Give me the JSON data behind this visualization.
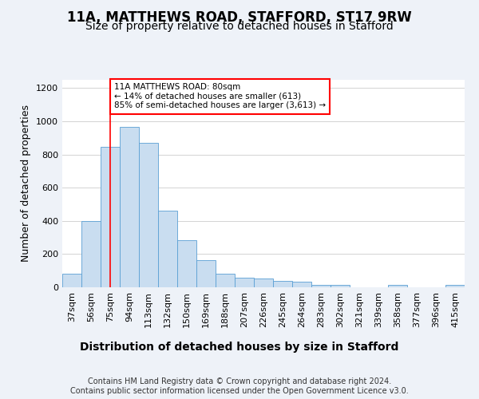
{
  "title1": "11A, MATTHEWS ROAD, STAFFORD, ST17 9RW",
  "title2": "Size of property relative to detached houses in Stafford",
  "xlabel": "Distribution of detached houses by size in Stafford",
  "ylabel": "Number of detached properties",
  "categories": [
    "37sqm",
    "56sqm",
    "75sqm",
    "94sqm",
    "113sqm",
    "132sqm",
    "150sqm",
    "169sqm",
    "188sqm",
    "207sqm",
    "226sqm",
    "245sqm",
    "264sqm",
    "283sqm",
    "302sqm",
    "321sqm",
    "339sqm",
    "358sqm",
    "377sqm",
    "396sqm",
    "415sqm"
  ],
  "values": [
    80,
    400,
    845,
    965,
    870,
    460,
    285,
    165,
    80,
    60,
    55,
    40,
    35,
    15,
    15,
    0,
    0,
    15,
    0,
    0,
    15
  ],
  "bar_color": "#c9ddf0",
  "bar_edge_color": "#5a9fd4",
  "annotation_text": "11A MATTHEWS ROAD: 80sqm\n← 14% of detached houses are smaller (613)\n85% of semi-detached houses are larger (3,613) →",
  "annotation_box_color": "white",
  "annotation_box_edge_color": "red",
  "vline_color": "red",
  "ylim": [
    0,
    1250
  ],
  "yticks": [
    0,
    200,
    400,
    600,
    800,
    1000,
    1200
  ],
  "footer": "Contains HM Land Registry data © Crown copyright and database right 2024.\nContains public sector information licensed under the Open Government Licence v3.0.",
  "bg_color": "#eef2f8",
  "plot_bg_color": "white",
  "title_fontsize": 12,
  "subtitle_fontsize": 10,
  "tick_fontsize": 8,
  "ylabel_fontsize": 9,
  "xlabel_fontsize": 10,
  "footer_fontsize": 7
}
